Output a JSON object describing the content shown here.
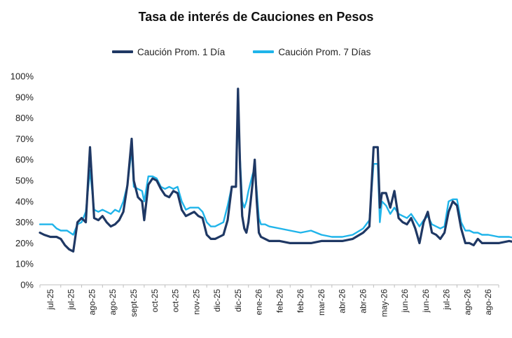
{
  "title": "Tasa de interés de Cauciones en Pesos",
  "legend": [
    "Caución Prom. 1 Día",
    "Caución Prom. 7 Días"
  ],
  "colors": {
    "series1": "#1f3864",
    "series2": "#1fb4ea",
    "axis": "#bfbfbf"
  },
  "chart_data": {
    "type": "line",
    "title": "Tasa de interés de Cauciones en Pesos",
    "xlabel": "",
    "ylabel": "",
    "ylim": [
      0,
      100
    ],
    "y_unit": "%",
    "yticks": [
      "0%",
      "10%",
      "20%",
      "30%",
      "40%",
      "50%",
      "60%",
      "70%",
      "80%",
      "90%",
      "100%"
    ],
    "x_tick_labels": [
      "jul-25",
      "jul-25",
      "ago-25",
      "ago-25",
      "sept-25",
      "oct-25",
      "oct-25",
      "nov-25",
      "dic-25",
      "dic-25",
      "ene-26",
      "feb-26",
      "feb-26",
      "mar-26",
      "abr-26",
      "abr-26",
      "may-26",
      "jun-26",
      "jun-26",
      "jul-26",
      "ago-26",
      "ago-26"
    ],
    "grid": false,
    "legend_position": "top",
    "series": [
      {
        "name": "Caución Prom. 1 Día",
        "points": [
          [
            0,
            25
          ],
          [
            0.2,
            24
          ],
          [
            0.5,
            23
          ],
          [
            0.8,
            23
          ],
          [
            1.0,
            22
          ],
          [
            1.2,
            19
          ],
          [
            1.4,
            17
          ],
          [
            1.6,
            16
          ],
          [
            1.8,
            30
          ],
          [
            2.0,
            32
          ],
          [
            2.2,
            30
          ],
          [
            2.4,
            66
          ],
          [
            2.6,
            32
          ],
          [
            2.8,
            31
          ],
          [
            3.0,
            33
          ],
          [
            3.2,
            30
          ],
          [
            3.4,
            28
          ],
          [
            3.6,
            29
          ],
          [
            3.8,
            31
          ],
          [
            4.0,
            35
          ],
          [
            4.2,
            48
          ],
          [
            4.4,
            70
          ],
          [
            4.5,
            50
          ],
          [
            4.7,
            42
          ],
          [
            4.9,
            40
          ],
          [
            5.0,
            31
          ],
          [
            5.2,
            48
          ],
          [
            5.4,
            51
          ],
          [
            5.6,
            50
          ],
          [
            5.8,
            46
          ],
          [
            6.0,
            43
          ],
          [
            6.2,
            42
          ],
          [
            6.4,
            45
          ],
          [
            6.6,
            44
          ],
          [
            6.8,
            36
          ],
          [
            7.0,
            33
          ],
          [
            7.2,
            34
          ],
          [
            7.4,
            35
          ],
          [
            7.6,
            33
          ],
          [
            7.8,
            32
          ],
          [
            8.0,
            24
          ],
          [
            8.2,
            22
          ],
          [
            8.4,
            22
          ],
          [
            8.6,
            23
          ],
          [
            8.8,
            24
          ],
          [
            9.0,
            31
          ],
          [
            9.2,
            47
          ],
          [
            9.4,
            47
          ],
          [
            9.5,
            94
          ],
          [
            9.6,
            56
          ],
          [
            9.7,
            33
          ],
          [
            9.8,
            27
          ],
          [
            9.9,
            25
          ],
          [
            10.0,
            30
          ],
          [
            10.2,
            49
          ],
          [
            10.3,
            60
          ],
          [
            10.4,
            40
          ],
          [
            10.5,
            25
          ],
          [
            10.6,
            23
          ],
          [
            10.8,
            22
          ],
          [
            11.0,
            21
          ],
          [
            11.5,
            21
          ],
          [
            12.0,
            20
          ],
          [
            12.5,
            20
          ],
          [
            13.0,
            20
          ],
          [
            13.5,
            21
          ],
          [
            14.0,
            21
          ],
          [
            14.5,
            21
          ],
          [
            15.0,
            22
          ],
          [
            15.5,
            25
          ],
          [
            15.8,
            28
          ],
          [
            16.0,
            66
          ],
          [
            16.2,
            66
          ],
          [
            16.3,
            37
          ],
          [
            16.4,
            44
          ],
          [
            16.6,
            44
          ],
          [
            16.8,
            37
          ],
          [
            17.0,
            45
          ],
          [
            17.2,
            32
          ],
          [
            17.4,
            30
          ],
          [
            17.6,
            29
          ],
          [
            17.8,
            32
          ],
          [
            18.0,
            27
          ],
          [
            18.2,
            20
          ],
          [
            18.4,
            30
          ],
          [
            18.6,
            35
          ],
          [
            18.8,
            25
          ],
          [
            19.0,
            24
          ],
          [
            19.2,
            22
          ],
          [
            19.4,
            25
          ],
          [
            19.6,
            35
          ],
          [
            19.8,
            40
          ],
          [
            20.0,
            38
          ],
          [
            20.2,
            27
          ],
          [
            20.4,
            20
          ],
          [
            20.6,
            20
          ],
          [
            20.8,
            19
          ],
          [
            21.0,
            22
          ],
          [
            21.2,
            20
          ],
          [
            21.5,
            20
          ],
          [
            22.0,
            20
          ],
          [
            22.5,
            21
          ],
          [
            23.0,
            20
          ],
          [
            23.5,
            20
          ],
          [
            24.0,
            20
          ],
          [
            24.5,
            20
          ],
          [
            25.0,
            23
          ],
          [
            25.5,
            20
          ],
          [
            26.0,
            20
          ],
          [
            26.5,
            20
          ],
          [
            27.0,
            19
          ],
          [
            27.5,
            19
          ],
          [
            28.0,
            20
          ],
          [
            28.5,
            20
          ],
          [
            29.0,
            20
          ],
          [
            29.5,
            24
          ],
          [
            29.8,
            17
          ],
          [
            30.0,
            18
          ],
          [
            30.5,
            20
          ],
          [
            31.0,
            20
          ],
          [
            31.5,
            20
          ],
          [
            32.0,
            21
          ],
          [
            32.5,
            20
          ],
          [
            33.0,
            25
          ],
          [
            33.5,
            22
          ],
          [
            34.0,
            24
          ],
          [
            34.3,
            24
          ],
          [
            34.5,
            28
          ],
          [
            34.8,
            22
          ],
          [
            35.0,
            21
          ],
          [
            35.5,
            22
          ],
          [
            35.9,
            20
          ]
        ]
      },
      {
        "name": "Caución Prom. 7 Días",
        "points": [
          [
            0,
            29
          ],
          [
            0.3,
            29
          ],
          [
            0.6,
            29
          ],
          [
            0.8,
            27
          ],
          [
            1.0,
            26
          ],
          [
            1.3,
            26
          ],
          [
            1.6,
            24
          ],
          [
            1.8,
            29
          ],
          [
            2.0,
            30
          ],
          [
            2.2,
            35
          ],
          [
            2.4,
            55
          ],
          [
            2.6,
            36
          ],
          [
            2.8,
            35
          ],
          [
            3.0,
            36
          ],
          [
            3.2,
            35
          ],
          [
            3.4,
            34
          ],
          [
            3.6,
            36
          ],
          [
            3.8,
            35
          ],
          [
            4.0,
            40
          ],
          [
            4.2,
            48
          ],
          [
            4.4,
            65
          ],
          [
            4.5,
            47
          ],
          [
            4.7,
            46
          ],
          [
            4.9,
            45
          ],
          [
            5.0,
            40
          ],
          [
            5.2,
            52
          ],
          [
            5.4,
            52
          ],
          [
            5.6,
            51
          ],
          [
            5.8,
            47
          ],
          [
            6.0,
            46
          ],
          [
            6.2,
            47
          ],
          [
            6.4,
            46
          ],
          [
            6.6,
            47
          ],
          [
            6.8,
            40
          ],
          [
            7.0,
            36
          ],
          [
            7.2,
            37
          ],
          [
            7.4,
            37
          ],
          [
            7.6,
            37
          ],
          [
            7.8,
            35
          ],
          [
            8.0,
            30
          ],
          [
            8.2,
            28
          ],
          [
            8.4,
            28
          ],
          [
            8.6,
            29
          ],
          [
            8.8,
            30
          ],
          [
            9.0,
            38
          ],
          [
            9.2,
            47
          ],
          [
            9.4,
            47
          ],
          [
            9.5,
            83
          ],
          [
            9.6,
            60
          ],
          [
            9.7,
            40
          ],
          [
            9.8,
            37
          ],
          [
            9.9,
            40
          ],
          [
            10.0,
            45
          ],
          [
            10.2,
            53
          ],
          [
            10.3,
            56
          ],
          [
            10.4,
            45
          ],
          [
            10.5,
            32
          ],
          [
            10.6,
            29
          ],
          [
            10.8,
            29
          ],
          [
            11.0,
            28
          ],
          [
            11.5,
            27
          ],
          [
            12.0,
            26
          ],
          [
            12.5,
            25
          ],
          [
            13.0,
            26
          ],
          [
            13.5,
            24
          ],
          [
            14.0,
            23
          ],
          [
            14.5,
            23
          ],
          [
            15.0,
            24
          ],
          [
            15.5,
            27
          ],
          [
            15.8,
            31
          ],
          [
            16.0,
            58
          ],
          [
            16.2,
            58
          ],
          [
            16.3,
            30
          ],
          [
            16.4,
            40
          ],
          [
            16.6,
            38
          ],
          [
            16.8,
            34
          ],
          [
            17.0,
            37
          ],
          [
            17.2,
            34
          ],
          [
            17.4,
            33
          ],
          [
            17.6,
            32
          ],
          [
            17.8,
            34
          ],
          [
            18.0,
            31
          ],
          [
            18.2,
            28
          ],
          [
            18.4,
            31
          ],
          [
            18.6,
            33
          ],
          [
            18.8,
            29
          ],
          [
            19.0,
            28
          ],
          [
            19.2,
            27
          ],
          [
            19.4,
            28
          ],
          [
            19.6,
            40
          ],
          [
            19.8,
            41
          ],
          [
            20.0,
            41
          ],
          [
            20.2,
            30
          ],
          [
            20.4,
            26
          ],
          [
            20.6,
            26
          ],
          [
            20.8,
            25
          ],
          [
            21.0,
            25
          ],
          [
            21.2,
            24
          ],
          [
            21.5,
            24
          ],
          [
            22.0,
            23
          ],
          [
            22.5,
            23
          ],
          [
            23.0,
            22
          ],
          [
            23.5,
            22
          ],
          [
            24.0,
            22
          ],
          [
            24.5,
            22
          ],
          [
            25.0,
            25
          ],
          [
            25.5,
            22
          ],
          [
            26.0,
            22
          ],
          [
            26.5,
            21
          ],
          [
            27.0,
            21
          ],
          [
            27.5,
            21
          ],
          [
            28.0,
            21
          ],
          [
            28.5,
            21
          ],
          [
            29.0,
            21
          ],
          [
            29.5,
            25
          ],
          [
            29.8,
            21
          ],
          [
            30.0,
            20
          ],
          [
            30.5,
            21
          ],
          [
            31.0,
            21
          ],
          [
            31.5,
            22
          ],
          [
            32.0,
            22
          ],
          [
            32.5,
            22
          ],
          [
            33.0,
            24
          ],
          [
            33.5,
            23
          ],
          [
            34.0,
            24
          ],
          [
            34.3,
            25
          ],
          [
            34.5,
            27
          ],
          [
            34.8,
            24
          ],
          [
            35.0,
            23
          ],
          [
            35.5,
            23
          ],
          [
            35.9,
            22
          ]
        ]
      }
    ]
  }
}
